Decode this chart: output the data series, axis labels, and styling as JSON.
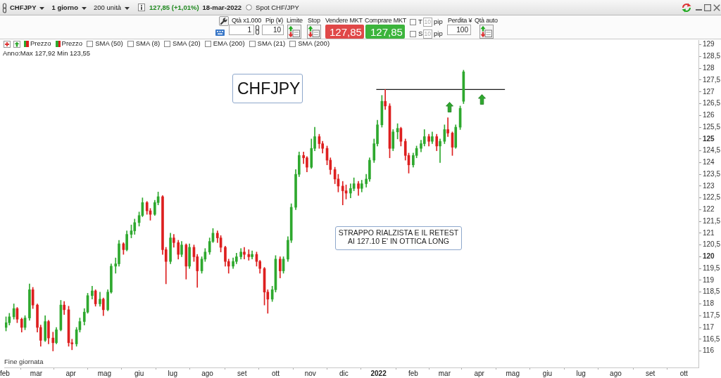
{
  "chart_data": {
    "type": "candlestick",
    "title": "CHFJPY",
    "annotations": [
      "CHFJPY",
      "1 giorno",
      "200 unità",
      "127,85 (+1,01%)",
      "18-mar-2022",
      "Spot CHF/JPY",
      "Qtà x1.000",
      "1",
      "Pip (¥)",
      "10",
      "Limite",
      "Stop",
      "Vendere MKT",
      "127,85",
      "Comprare MKT",
      "127,85",
      "T",
      "10",
      "pip",
      "S",
      "10",
      "pip",
      "Perdita ¥",
      "100",
      "Qtà auto",
      "Prezzo",
      "Prezzo",
      "SMA (50)",
      "SMA (8)",
      "SMA (20)",
      "EMA (200)",
      "SMA (21)",
      "SMA (200)",
      "Anno:Max 127,92 Min 123,55",
      "STRAPPO RIALZISTA E IL RETEST\nAI 127.10 E' IN OTTICA LONG",
      "Fine giornata"
    ],
    "xlim": [
      "2021-02-01",
      "2022-10-14"
    ],
    "xticks": [
      {
        "value": "2021-02-01",
        "label": "feb"
      },
      {
        "value": "2021-03-01",
        "label": "mar"
      },
      {
        "value": "2021-04-01",
        "label": "apr"
      },
      {
        "value": "2021-05-01",
        "label": "mag"
      },
      {
        "value": "2021-06-01",
        "label": "giu"
      },
      {
        "value": "2021-07-01",
        "label": "lug"
      },
      {
        "value": "2021-08-01",
        "label": "ago"
      },
      {
        "value": "2021-09-01",
        "label": "set"
      },
      {
        "value": "2021-10-01",
        "label": "ott"
      },
      {
        "value": "2021-11-01",
        "label": "nov"
      },
      {
        "value": "2021-12-01",
        "label": "dic"
      },
      {
        "value": "2022-01-01",
        "label": "2022"
      },
      {
        "value": "2022-02-01",
        "label": "feb"
      },
      {
        "value": "2022-03-01",
        "label": "mar"
      },
      {
        "value": "2022-04-01",
        "label": "apr"
      },
      {
        "value": "2022-05-01",
        "label": "mag"
      },
      {
        "value": "2022-06-01",
        "label": "giu"
      },
      {
        "value": "2022-07-01",
        "label": "lug"
      },
      {
        "value": "2022-08-01",
        "label": "ago"
      },
      {
        "value": "2022-09-01",
        "label": "set"
      },
      {
        "value": "2022-10-01",
        "label": "ott"
      }
    ],
    "ylim": [
      115.3,
      129.2
    ],
    "yticks": [
      116,
      {
        "value": 116.5,
        "label": "116,5"
      },
      117,
      {
        "value": 117.5,
        "label": "117,5"
      },
      118,
      {
        "value": 118.5,
        "label": "118,5"
      },
      119,
      {
        "value": 119.5,
        "label": "119,5"
      },
      120,
      {
        "value": 120.5,
        "label": "120,5"
      },
      121,
      {
        "value": 121.5,
        "label": "121,5"
      },
      122,
      {
        "value": 122.5,
        "label": "122,5"
      },
      123,
      {
        "value": 123.5,
        "label": "123,5"
      },
      124,
      {
        "value": 124.5,
        "label": "124,5"
      },
      125,
      {
        "value": 125.5,
        "label": "125,5"
      },
      126,
      {
        "value": 126.5,
        "label": "126,5"
      },
      127,
      {
        "value": 127.5,
        "label": "127,5"
      },
      128,
      {
        "value": 128.5,
        "label": "128,5"
      },
      129
    ],
    "series": [
      {
        "x": [
          "2021-02-02",
          "2021-02-05",
          "2021-02-09",
          "2021-02-12",
          "2021-02-16",
          "2021-02-19",
          "2021-02-23",
          "2021-02-26",
          "2021-03-02",
          "2021-03-05",
          "2021-03-09",
          "2021-03-12",
          "2021-03-16",
          "2021-03-19",
          "2021-03-23",
          "2021-03-26",
          "2021-03-30",
          "2021-04-02",
          "2021-04-06",
          "2021-04-09",
          "2021-04-13",
          "2021-04-16",
          "2021-04-20",
          "2021-04-23",
          "2021-04-27",
          "2021-04-30",
          "2021-05-04",
          "2021-05-07",
          "2021-05-11",
          "2021-05-14",
          "2021-05-18",
          "2021-05-21",
          "2021-05-25",
          "2021-05-28",
          "2021-06-01",
          "2021-06-04",
          "2021-06-08",
          "2021-06-11",
          "2021-06-15",
          "2021-06-18",
          "2021-06-22",
          "2021-06-25",
          "2021-06-29",
          "2021-07-02",
          "2021-07-06",
          "2021-07-09",
          "2021-07-13",
          "2021-07-16",
          "2021-07-20",
          "2021-07-23",
          "2021-07-27",
          "2021-07-30",
          "2021-08-03",
          "2021-08-06",
          "2021-08-10",
          "2021-08-13",
          "2021-08-17",
          "2021-08-20",
          "2021-08-24",
          "2021-08-27",
          "2021-08-31",
          "2021-09-03",
          "2021-09-07",
          "2021-09-10",
          "2021-09-14",
          "2021-09-17",
          "2021-09-21",
          "2021-09-24",
          "2021-09-28",
          "2021-10-01",
          "2021-10-05",
          "2021-10-08",
          "2021-10-12",
          "2021-10-15",
          "2021-10-19",
          "2021-10-22",
          "2021-10-26",
          "2021-10-29",
          "2021-11-02",
          "2021-11-05",
          "2021-11-09",
          "2021-11-12",
          "2021-11-16",
          "2021-11-19",
          "2021-11-23",
          "2021-11-26",
          "2021-11-30",
          "2021-12-03",
          "2021-12-07",
          "2021-12-10",
          "2021-12-14",
          "2021-12-17",
          "2021-12-21",
          "2021-12-24",
          "2021-12-28",
          "2021-12-31",
          "2022-01-04",
          "2022-01-07",
          "2022-01-11",
          "2022-01-14",
          "2022-01-18",
          "2022-01-21",
          "2022-01-25",
          "2022-01-28",
          "2022-02-01",
          "2022-02-04",
          "2022-02-08",
          "2022-02-11",
          "2022-02-15",
          "2022-02-18",
          "2022-02-22",
          "2022-02-25",
          "2022-03-01",
          "2022-03-04",
          "2022-03-08",
          "2022-03-11",
          "2022-03-15",
          "2022-03-18"
        ],
        "ohlc": [
          [
            117.0,
            117.45,
            116.85,
            117.2
          ],
          [
            117.2,
            117.6,
            117.1,
            117.45
          ],
          [
            117.45,
            118.0,
            117.35,
            117.8
          ],
          [
            117.8,
            117.85,
            117.2,
            117.35
          ],
          [
            117.35,
            117.4,
            116.8,
            117.0
          ],
          [
            117.0,
            117.5,
            116.9,
            117.4
          ],
          [
            117.4,
            118.85,
            117.3,
            118.6
          ],
          [
            118.6,
            118.7,
            117.8,
            117.95
          ],
          [
            117.95,
            118.0,
            116.8,
            117.0
          ],
          [
            117.0,
            117.1,
            116.2,
            116.45
          ],
          [
            116.45,
            117.5,
            116.4,
            117.25
          ],
          [
            117.25,
            117.3,
            116.3,
            116.55
          ],
          [
            116.55,
            116.8,
            116.0,
            116.35
          ],
          [
            116.35,
            117.0,
            116.3,
            116.9
          ],
          [
            116.9,
            118.15,
            116.85,
            117.95
          ],
          [
            117.95,
            118.1,
            117.55,
            117.75
          ],
          [
            117.75,
            117.9,
            116.2,
            116.35
          ],
          [
            116.35,
            116.5,
            116.05,
            116.3
          ],
          [
            116.3,
            117.0,
            116.2,
            116.9
          ],
          [
            116.9,
            117.4,
            116.8,
            117.25
          ],
          [
            117.25,
            117.8,
            117.1,
            117.65
          ],
          [
            117.65,
            118.45,
            117.6,
            118.35
          ],
          [
            118.35,
            118.75,
            118.2,
            118.55
          ],
          [
            118.55,
            118.6,
            117.9,
            118.0
          ],
          [
            118.0,
            118.5,
            117.9,
            118.2
          ],
          [
            118.2,
            118.25,
            117.5,
            117.75
          ],
          [
            117.75,
            118.6,
            117.7,
            118.5
          ],
          [
            118.5,
            119.7,
            118.45,
            119.6
          ],
          [
            119.6,
            119.95,
            119.3,
            119.7
          ],
          [
            119.7,
            120.7,
            119.6,
            120.55
          ],
          [
            120.55,
            120.6,
            120.1,
            120.3
          ],
          [
            120.3,
            121.1,
            120.25,
            120.95
          ],
          [
            120.95,
            121.35,
            120.8,
            121.1
          ],
          [
            121.1,
            121.6,
            120.95,
            121.45
          ],
          [
            121.45,
            121.9,
            121.3,
            121.75
          ],
          [
            121.75,
            122.5,
            121.7,
            122.3
          ],
          [
            122.3,
            122.35,
            121.8,
            121.95
          ],
          [
            121.95,
            122.05,
            121.55,
            121.8
          ],
          [
            121.8,
            122.4,
            121.75,
            122.3
          ],
          [
            122.3,
            122.75,
            122.2,
            122.55
          ],
          [
            122.55,
            122.6,
            120.1,
            120.3
          ],
          [
            120.3,
            120.4,
            118.85,
            119.8
          ],
          [
            119.8,
            121.0,
            119.7,
            120.8
          ],
          [
            120.8,
            120.95,
            120.4,
            120.6
          ],
          [
            120.6,
            120.7,
            119.9,
            120.1
          ],
          [
            120.1,
            120.65,
            120.0,
            120.5
          ],
          [
            120.5,
            120.55,
            119.05,
            119.6
          ],
          [
            119.6,
            120.55,
            119.5,
            120.4
          ],
          [
            120.4,
            120.5,
            119.8,
            120.0
          ],
          [
            120.0,
            120.1,
            118.7,
            119.4
          ],
          [
            119.4,
            120.0,
            119.3,
            119.9
          ],
          [
            119.9,
            120.35,
            119.8,
            120.2
          ],
          [
            120.2,
            120.8,
            120.1,
            120.65
          ],
          [
            120.65,
            121.2,
            120.6,
            121.0
          ],
          [
            121.0,
            121.1,
            120.6,
            120.8
          ],
          [
            120.8,
            120.9,
            120.2,
            120.4
          ],
          [
            120.4,
            120.45,
            119.6,
            119.8
          ],
          [
            119.8,
            119.9,
            119.3,
            119.6
          ],
          [
            119.6,
            119.95,
            119.5,
            119.8
          ],
          [
            119.8,
            120.15,
            119.7,
            120.0
          ],
          [
            120.0,
            120.35,
            119.9,
            120.2
          ],
          [
            120.2,
            120.4,
            119.9,
            120.1
          ],
          [
            120.1,
            120.3,
            119.85,
            120.0
          ],
          [
            120.0,
            120.25,
            119.9,
            120.1
          ],
          [
            120.1,
            120.2,
            119.6,
            119.8
          ],
          [
            119.8,
            119.85,
            119.3,
            119.5
          ],
          [
            119.5,
            119.55,
            117.95,
            118.5
          ],
          [
            118.5,
            118.6,
            117.6,
            118.2
          ],
          [
            118.2,
            118.75,
            118.1,
            118.6
          ],
          [
            118.6,
            120.05,
            118.5,
            119.9
          ],
          [
            119.9,
            120.0,
            119.1,
            119.4
          ],
          [
            119.4,
            120.0,
            119.3,
            119.9
          ],
          [
            119.9,
            120.85,
            119.8,
            120.7
          ],
          [
            120.7,
            122.25,
            120.6,
            122.1
          ],
          [
            122.1,
            123.7,
            122.0,
            123.5
          ],
          [
            123.5,
            124.45,
            123.4,
            124.3
          ],
          [
            124.3,
            124.45,
            123.95,
            124.2
          ],
          [
            124.2,
            124.25,
            123.6,
            123.8
          ],
          [
            123.8,
            125.0,
            123.75,
            124.6
          ],
          [
            124.6,
            125.5,
            124.5,
            125.1
          ],
          [
            125.1,
            125.2,
            124.6,
            124.8
          ],
          [
            124.8,
            124.9,
            124.4,
            124.6
          ],
          [
            124.6,
            124.7,
            123.9,
            124.1
          ],
          [
            124.1,
            124.2,
            123.5,
            123.7
          ],
          [
            123.7,
            123.8,
            123.1,
            123.3
          ],
          [
            123.3,
            123.5,
            122.75,
            123.0
          ],
          [
            123.0,
            123.2,
            122.2,
            122.8
          ],
          [
            122.8,
            123.05,
            122.45,
            122.7
          ],
          [
            122.7,
            123.1,
            122.5,
            122.9
          ],
          [
            122.9,
            123.35,
            122.8,
            123.1
          ],
          [
            123.1,
            123.2,
            122.6,
            122.9
          ],
          [
            122.9,
            123.25,
            122.75,
            123.1
          ],
          [
            123.1,
            123.5,
            122.95,
            123.3
          ],
          [
            123.3,
            124.2,
            123.2,
            124.1
          ],
          [
            124.1,
            125.0,
            124.0,
            124.8
          ],
          [
            124.8,
            125.8,
            124.7,
            125.6
          ],
          [
            125.6,
            126.85,
            125.5,
            126.6
          ],
          [
            126.6,
            127.1,
            126.25,
            126.4
          ],
          [
            126.4,
            126.5,
            124.2,
            124.6
          ],
          [
            124.6,
            125.4,
            124.5,
            125.3
          ],
          [
            125.3,
            125.65,
            125.0,
            125.45
          ],
          [
            125.45,
            125.5,
            124.7,
            124.9
          ],
          [
            124.9,
            125.0,
            124.1,
            124.3
          ],
          [
            124.3,
            124.4,
            123.55,
            123.9
          ],
          [
            123.9,
            124.4,
            123.8,
            124.3
          ],
          [
            124.3,
            124.7,
            124.2,
            124.6
          ],
          [
            124.6,
            124.95,
            124.45,
            124.8
          ],
          [
            124.8,
            125.4,
            124.7,
            125.1
          ],
          [
            125.1,
            125.2,
            124.7,
            124.9
          ],
          [
            124.9,
            125.3,
            124.8,
            125.1
          ],
          [
            125.1,
            125.2,
            124.5,
            124.7
          ],
          [
            124.7,
            125.0,
            124.0,
            124.9
          ],
          [
            124.9,
            125.6,
            124.8,
            125.4
          ],
          [
            125.4,
            125.9,
            125.1,
            125.25
          ],
          [
            125.25,
            125.3,
            124.3,
            124.65
          ],
          [
            124.65,
            125.6,
            124.6,
            125.5
          ],
          [
            125.5,
            126.4,
            125.4,
            126.3
          ],
          [
            126.6,
            127.92,
            126.5,
            127.85
          ]
        ],
        "colors": [
          "#2ea82e",
          "#2ea82e",
          "#2ea82e",
          "#dd1f1f",
          "#dd1f1f",
          "#2ea82e",
          "#2ea82e",
          "#dd1f1f",
          "#dd1f1f",
          "#dd1f1f",
          "#2ea82e",
          "#dd1f1f",
          "#dd1f1f",
          "#2ea82e",
          "#2ea82e",
          "#dd1f1f",
          "#dd1f1f",
          "#dd1f1f",
          "#2ea82e",
          "#2ea82e",
          "#2ea82e",
          "#2ea82e",
          "#2ea82e",
          "#dd1f1f",
          "#2ea82e",
          "#dd1f1f",
          "#2ea82e",
          "#2ea82e",
          "#2ea82e",
          "#2ea82e",
          "#dd1f1f",
          "#2ea82e",
          "#2ea82e",
          "#2ea82e",
          "#2ea82e",
          "#2ea82e",
          "#dd1f1f",
          "#dd1f1f",
          "#2ea82e",
          "#2ea82e",
          "#dd1f1f",
          "#dd1f1f",
          "#2ea82e",
          "#dd1f1f",
          "#dd1f1f",
          "#2ea82e",
          "#dd1f1f",
          "#2ea82e",
          "#dd1f1f",
          "#dd1f1f",
          "#2ea82e",
          "#2ea82e",
          "#2ea82e",
          "#2ea82e",
          "#dd1f1f",
          "#dd1f1f",
          "#dd1f1f",
          "#dd1f1f",
          "#2ea82e",
          "#2ea82e",
          "#2ea82e",
          "#dd1f1f",
          "#dd1f1f",
          "#2ea82e",
          "#dd1f1f",
          "#dd1f1f",
          "#dd1f1f",
          "#dd1f1f",
          "#2ea82e",
          "#2ea82e",
          "#dd1f1f",
          "#2ea82e",
          "#2ea82e",
          "#2ea82e",
          "#2ea82e",
          "#2ea82e",
          "#dd1f1f",
          "#dd1f1f",
          "#2ea82e",
          "#2ea82e",
          "#dd1f1f",
          "#dd1f1f",
          "#dd1f1f",
          "#dd1f1f",
          "#dd1f1f",
          "#dd1f1f",
          "#dd1f1f",
          "#dd1f1f",
          "#2ea82e",
          "#2ea82e",
          "#dd1f1f",
          "#2ea82e",
          "#2ea82e",
          "#2ea82e",
          "#2ea82e",
          "#2ea82e",
          "#2ea82e",
          "#dd1f1f",
          "#dd1f1f",
          "#2ea82e",
          "#2ea82e",
          "#dd1f1f",
          "#dd1f1f",
          "#dd1f1f",
          "#2ea82e",
          "#2ea82e",
          "#2ea82e",
          "#2ea82e",
          "#dd1f1f",
          "#2ea82e",
          "#dd1f1f",
          "#2ea82e",
          "#2ea82e",
          "#dd1f1f",
          "#dd1f1f",
          "#2ea82e",
          "#2ea82e",
          "#2ea82e"
        ]
      },
      {
        "type": "line",
        "x": [
          "2021-12-30",
          "2022-04-24"
        ],
        "values": [
          127.1,
          127.1
        ],
        "color": "#1a1a1a"
      }
    ]
  }
}
